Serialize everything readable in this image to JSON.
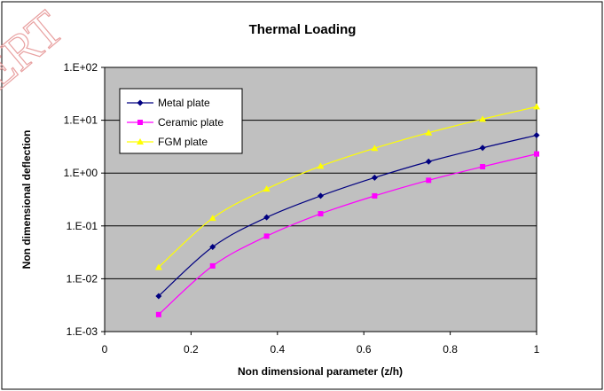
{
  "chart_data": {
    "type": "line",
    "title": "Thermal Loading",
    "xlabel": "Non dimensional parameter (z/h)",
    "ylabel": "Non dimensional deflection",
    "xlim": [
      0,
      1
    ],
    "ylim": [
      0.001,
      100
    ],
    "yscale": "log",
    "x_ticks": [
      "0",
      "0.2",
      "0.4",
      "0.6",
      "0.8",
      "1"
    ],
    "y_ticks": [
      "1.E-03",
      "1.E-02",
      "1.E-01",
      "1.E+00",
      "1.E+01",
      "1.E+02"
    ],
    "x": [
      0.125,
      0.25,
      0.375,
      0.5,
      0.625,
      0.75,
      0.875,
      1.0
    ],
    "series": [
      {
        "name": "Metal plate",
        "color": "#000080",
        "marker": "diamond",
        "values": [
          0.0047,
          0.04,
          0.145,
          0.37,
          0.82,
          1.65,
          3.0,
          5.2
        ]
      },
      {
        "name": "Ceramic plate",
        "color": "#ff00ff",
        "marker": "square",
        "values": [
          0.0021,
          0.0175,
          0.064,
          0.17,
          0.37,
          0.73,
          1.32,
          2.3
        ]
      },
      {
        "name": "FGM plate",
        "color": "#ffff00",
        "marker": "triangle",
        "values": [
          0.0165,
          0.14,
          0.5,
          1.35,
          2.95,
          5.8,
          10.5,
          18.0
        ]
      }
    ],
    "grid": true,
    "legend_position": "top-left",
    "plot_background": "#c0c0c0"
  },
  "watermark": "JERT"
}
